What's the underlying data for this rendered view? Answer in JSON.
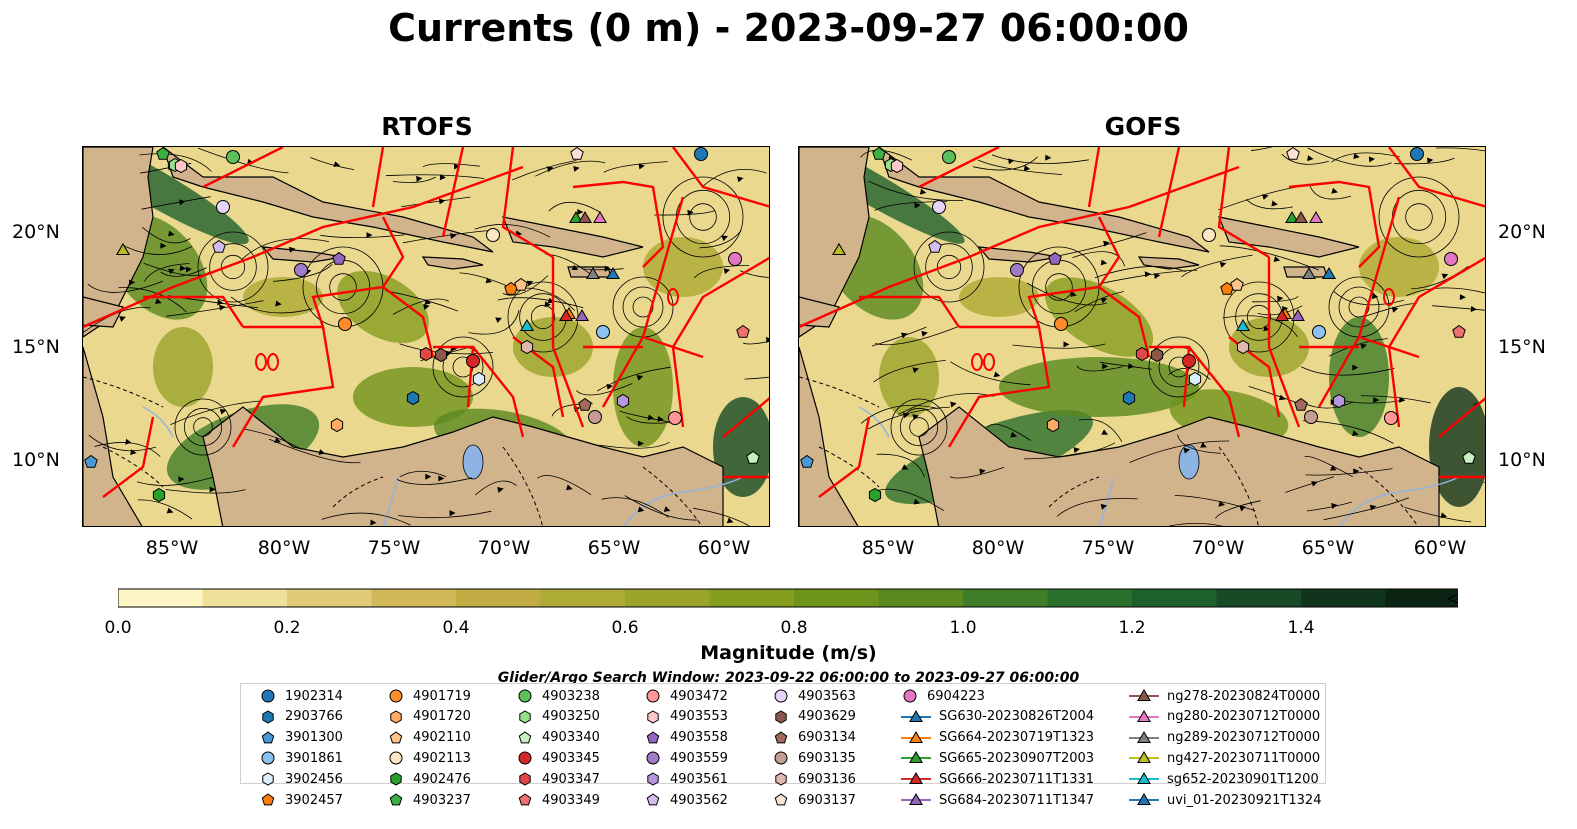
{
  "title": "Currents (0 m) - 2023-09-27 06:00:00",
  "panels": [
    {
      "title": "RTOFS"
    },
    {
      "title": "GOFS"
    }
  ],
  "axes": {
    "x_ticks": [
      "85°W",
      "80°W",
      "75°W",
      "70°W",
      "65°W",
      "60°W"
    ],
    "y_ticks": [
      "20°N",
      "15°N",
      "10°N"
    ]
  },
  "colorbar": {
    "label": "Magnitude (m/s)",
    "ticks": [
      "0.0",
      "0.2",
      "0.4",
      "0.6",
      "0.8",
      "1.0",
      "1.2",
      "1.4"
    ],
    "colors": [
      "#fdf6c4",
      "#efe09a",
      "#e0cb76",
      "#d1b95a",
      "#c1ac44",
      "#adaa35",
      "#9aa42a",
      "#869e20",
      "#6f941b",
      "#5a8a1f",
      "#3f7d28",
      "#2a6f2c",
      "#1d602c",
      "#174a26",
      "#11341d",
      "#0c2414"
    ]
  },
  "legend_note": "Glider/Argo Search Window: 2023-09-22 06:00:00 to 2023-09-27 06:00:00",
  "legend": [
    {
      "label": "1902314",
      "color": "#1f77b4",
      "marker": "circle"
    },
    {
      "label": "2903766",
      "color": "#1f77b4",
      "marker": "hexagon"
    },
    {
      "label": "3901300",
      "color": "#4b98d6",
      "marker": "pentagon"
    },
    {
      "label": "3901861",
      "color": "#8dc2f0",
      "marker": "circle"
    },
    {
      "label": "3902456",
      "color": "#dbeeff",
      "marker": "hexagon"
    },
    {
      "label": "3902457",
      "color": "#ff7f0e",
      "marker": "pentagon"
    },
    {
      "label": "4901719",
      "color": "#ff8c2a",
      "marker": "circle"
    },
    {
      "label": "4901720",
      "color": "#ffaa66",
      "marker": "hexagon"
    },
    {
      "label": "4902110",
      "color": "#ffc48a",
      "marker": "pentagon"
    },
    {
      "label": "4902113",
      "color": "#ffe6c4",
      "marker": "circle"
    },
    {
      "label": "4902476",
      "color": "#2ca02c",
      "marker": "hexagon"
    },
    {
      "label": "4903237",
      "color": "#3cb043",
      "marker": "pentagon"
    },
    {
      "label": "4903238",
      "color": "#5cc05c",
      "marker": "circle"
    },
    {
      "label": "4903250",
      "color": "#98df8a",
      "marker": "hexagon"
    },
    {
      "label": "4903340",
      "color": "#c8f0c0",
      "marker": "pentagon"
    },
    {
      "label": "4903345",
      "color": "#d62728",
      "marker": "circle"
    },
    {
      "label": "4903347",
      "color": "#e04848",
      "marker": "hexagon"
    },
    {
      "label": "4903349",
      "color": "#f07070",
      "marker": "pentagon"
    },
    {
      "label": "4903472",
      "color": "#ff9896",
      "marker": "circle"
    },
    {
      "label": "4903553",
      "color": "#ffc8c8",
      "marker": "hexagon"
    },
    {
      "label": "4903558",
      "color": "#9467bd",
      "marker": "pentagon"
    },
    {
      "label": "4903559",
      "color": "#a07cc8",
      "marker": "circle"
    },
    {
      "label": "4903561",
      "color": "#b896dc",
      "marker": "hexagon"
    },
    {
      "label": "4903562",
      "color": "#d3bcf0",
      "marker": "pentagon"
    },
    {
      "label": "4903563",
      "color": "#e4d4f8",
      "marker": "circle"
    },
    {
      "label": "4903629",
      "color": "#8c564b",
      "marker": "hexagon"
    },
    {
      "label": "6903134",
      "color": "#a06a5c",
      "marker": "pentagon"
    },
    {
      "label": "6903135",
      "color": "#c49c94",
      "marker": "circle"
    },
    {
      "label": "6903136",
      "color": "#e0b8ae",
      "marker": "hexagon"
    },
    {
      "label": "6903137",
      "color": "#fde0d8",
      "marker": "pentagon"
    },
    {
      "label": "6904223",
      "color": "#e377c2",
      "marker": "circle"
    },
    {
      "label": "SG630-20230826T2004",
      "color": "#1f77b4",
      "marker": "triangle"
    },
    {
      "label": "SG664-20230719T1323",
      "color": "#ff7f0e",
      "marker": "triangle"
    },
    {
      "label": "SG665-20230907T2003",
      "color": "#2ca02c",
      "marker": "triangle"
    },
    {
      "label": "SG666-20230711T1331",
      "color": "#d62728",
      "marker": "triangle"
    },
    {
      "label": "SG684-20230711T1347",
      "color": "#9467bd",
      "marker": "triangle"
    },
    {
      "label": "ng278-20230824T0000",
      "color": "#8c564b",
      "marker": "triangle"
    },
    {
      "label": "ng280-20230712T0000",
      "color": "#e377c2",
      "marker": "triangle"
    },
    {
      "label": "ng289-20230712T0000",
      "color": "#7f7f7f",
      "marker": "triangle"
    },
    {
      "label": "ng427-20230711T0000",
      "color": "#bcbd22",
      "marker": "triangle"
    },
    {
      "label": "sg652-20230901T1200",
      "color": "#17becf",
      "marker": "triangle"
    },
    {
      "label": "uvi_01-20230921T1324",
      "color": "#1f77b4",
      "marker": "triangle"
    }
  ],
  "colors": {
    "eez_lines": "#ff0000",
    "land": "#d2b48c",
    "lake": "#8eb4e3",
    "streamline": "#000000"
  }
}
